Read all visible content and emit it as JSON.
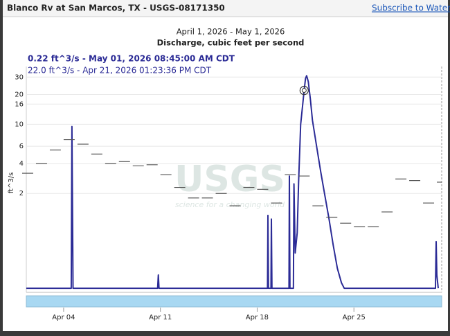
{
  "header": {
    "title": "Blanco Rv at San Marcos, TX - USGS-08171350",
    "link": "Subscribe to WaterAler"
  },
  "chart_data": {
    "type": "line",
    "title": "April 1, 2026 - May 1, 2026",
    "subtitle": "Discharge, cubic feet per second",
    "tooltip": [
      "0.22 ft^3/s - May 01, 2026 08:45:00 AM CDT",
      "22.0 ft^3/s - Apr 21, 2026 01:23:36 PM CDT"
    ],
    "ylabel": "ft^3/s",
    "watermark": [
      "USGS",
      "science for a changing world"
    ],
    "yscale": "log",
    "xlim": [
      1.3,
      31.35
    ],
    "ylim": [
      0.2,
      36
    ],
    "xticks": [
      {
        "value": 4,
        "label": "Apr 04"
      },
      {
        "value": 11,
        "label": "Apr 11"
      },
      {
        "value": 18,
        "label": "Apr 18"
      },
      {
        "value": 25,
        "label": "Apr 25"
      }
    ],
    "yticks": [
      2,
      4,
      6,
      10,
      16,
      20,
      30
    ],
    "grid": true,
    "series": [
      {
        "color": "#2b2b96",
        "style": "line",
        "x": [
          1.3,
          4.55,
          4.6,
          4.68,
          10.8,
          10.85,
          10.9,
          18.75,
          18.78,
          18.82,
          19.0,
          19.03,
          19.07,
          20.3,
          20.33,
          20.37,
          20.62,
          20.66,
          20.75,
          20.9,
          21.0,
          21.15,
          21.3,
          21.4,
          21.5,
          21.58,
          21.7,
          21.85,
          22.0,
          22.3,
          22.6,
          22.9,
          23.2,
          23.5,
          23.8,
          24.1,
          24.3,
          30.9,
          30.95,
          31.0,
          31.1
        ],
        "values": [
          0.22,
          0.22,
          9.5,
          0.22,
          0.22,
          0.3,
          0.22,
          0.22,
          1.2,
          0.22,
          0.22,
          1.1,
          0.22,
          0.22,
          3,
          0.22,
          0.22,
          2.5,
          0.5,
          0.8,
          2.6,
          10,
          16,
          22,
          29,
          31,
          27,
          18,
          11,
          6,
          3.3,
          1.9,
          1.1,
          0.6,
          0.35,
          0.25,
          0.22,
          0.22,
          0.65,
          0.3,
          0.22
        ]
      },
      {
        "color": "#555555",
        "style": "daily",
        "x": [
          1,
          2,
          3,
          4,
          5,
          6,
          7,
          8,
          9,
          10,
          11,
          12,
          13,
          14,
          15,
          16,
          17,
          18,
          19,
          20,
          21,
          22,
          23,
          24,
          25,
          26,
          27,
          28,
          29,
          30,
          31
        ],
        "values": [
          3.2,
          4.0,
          5.5,
          7.0,
          6.3,
          5.0,
          4.0,
          4.2,
          3.8,
          3.9,
          3.1,
          2.3,
          1.8,
          1.8,
          2.0,
          1.5,
          2.3,
          2.2,
          1.6,
          3.1,
          3.0,
          1.5,
          1.15,
          1.0,
          0.92,
          0.92,
          1.3,
          2.8,
          2.7,
          1.6,
          2.6
        ]
      }
    ],
    "hover": {
      "x": 21.4,
      "value": 22
    }
  }
}
